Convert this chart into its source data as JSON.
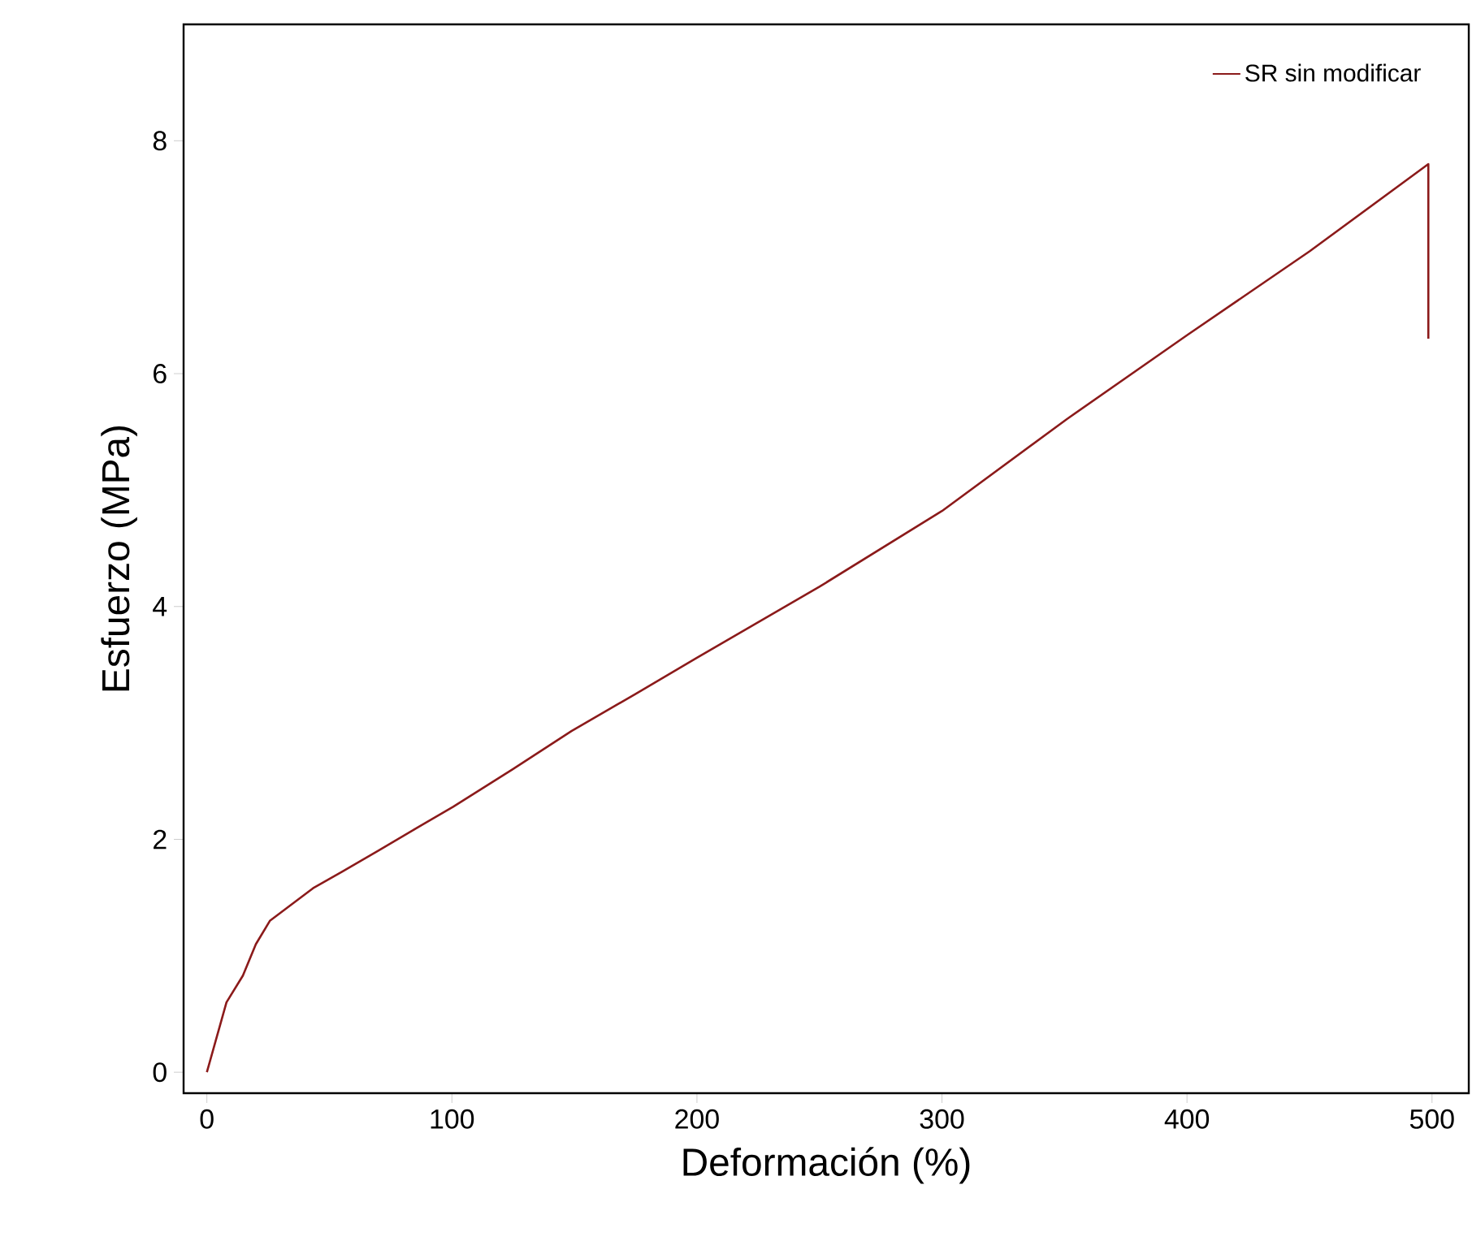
{
  "chart_data": {
    "type": "line",
    "xlabel": "Deformación (%)",
    "ylabel": "Esfuerzo (MPa)",
    "x": [
      0,
      4,
      8,
      14.7,
      20,
      25.7,
      34.5,
      43.3,
      55,
      69.7,
      85,
      100.5,
      124.7,
      148.8,
      175,
      200,
      250,
      300,
      351,
      400,
      450,
      498.5,
      498.5
    ],
    "series": [
      {
        "name": "SR sin modificar",
        "color": "#8b1a1a",
        "values": [
          0,
          0.3,
          0.6,
          0.83,
          1.1,
          1.3,
          1.44,
          1.58,
          1.72,
          1.9,
          2.09,
          2.28,
          2.6,
          2.93,
          3.25,
          3.56,
          4.17,
          4.82,
          5.61,
          6.33,
          7.05,
          7.8,
          6.3
        ]
      }
    ],
    "xlim": [
      -9.5,
      515
    ],
    "ylim": [
      -0.18,
      9.0
    ],
    "xticks": [
      0,
      100,
      200,
      300,
      400,
      500
    ],
    "yticks": [
      0,
      2,
      4,
      6,
      8
    ],
    "legend": "top right",
    "grid": false,
    "marker": "none",
    "line_style": "solid"
  }
}
